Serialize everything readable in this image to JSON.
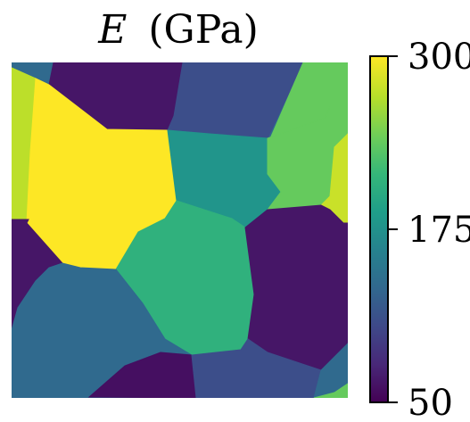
{
  "chart_data": {
    "type": "heatmap",
    "title_symbol": "E",
    "title_unit": "(GPa)",
    "colorbar": {
      "colormap": "viridis",
      "range": [
        50,
        300
      ],
      "ticks": [
        300,
        175,
        50
      ]
    },
    "grid": false,
    "description_values": {
      "grain_values_gpa": [
        {
          "grain": "top-left-small",
          "value": 135
        },
        {
          "grain": "top-middle",
          "value": 65
        },
        {
          "grain": "top-right-middle",
          "value": 110
        },
        {
          "grain": "top-right-corner",
          "value": 240
        },
        {
          "grain": "left-upper-strip",
          "value": 275
        },
        {
          "grain": "center-left-large",
          "value": 300
        },
        {
          "grain": "center",
          "value": 180
        },
        {
          "grain": "right-upper",
          "value": 240
        },
        {
          "grain": "right-edge-strip",
          "value": 280
        },
        {
          "grain": "left-lower",
          "value": 65
        },
        {
          "grain": "center-lower",
          "value": 210
        },
        {
          "grain": "right-middle",
          "value": 65
        },
        {
          "grain": "bottom-left",
          "value": 135
        },
        {
          "grain": "bottom-left-center",
          "value": 60
        },
        {
          "grain": "bottom-middle",
          "value": 110
        },
        {
          "grain": "bottom-right-small",
          "value": 135
        },
        {
          "grain": "bottom-right-corner",
          "value": 240
        }
      ]
    }
  },
  "colors": {
    "viridis_stops": [
      "#440154",
      "#482878",
      "#3e4989",
      "#31688e",
      "#26828e",
      "#1f9e89",
      "#35b779",
      "#6ece58",
      "#b5de2b",
      "#fde725"
    ]
  }
}
